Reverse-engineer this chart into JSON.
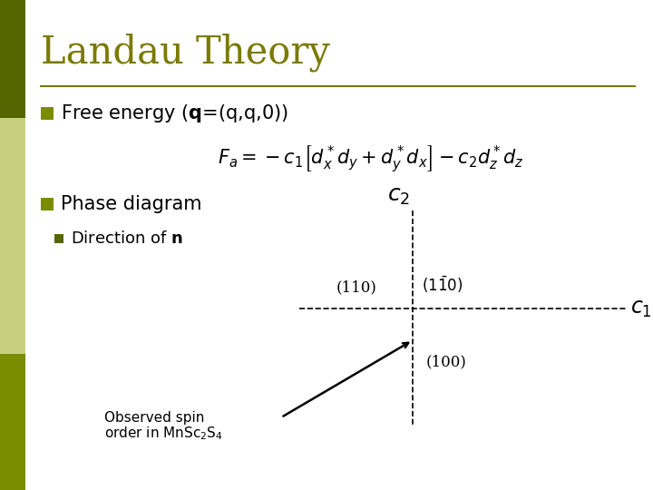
{
  "title": "Landau Theory",
  "title_color": "#7a7a00",
  "background_color": "#ffffff",
  "left_bar_top_color": "#556600",
  "left_bar_mid_color": "#c8d080",
  "left_bar_bot_color": "#7a8c00",
  "bullet_color": "#7a8c00",
  "sub_bullet_color": "#556600",
  "free_energy_text": "Free energy ($\\mathbf{q}$=(q,q,0))",
  "formula": "$F_a = -c_1\\left[d_x^*d_y + d_y^*d_x\\right] - c_2 d_z^*d_z$",
  "phase_diagram_text": "Phase diagram",
  "direction_text": "Direction of $\\mathbf{n}$",
  "c2_label": "$c_2$",
  "c1_label": "$c_1$",
  "label_110": "(110)",
  "label_110bar": "$(1\\bar{1}0)$",
  "label_100": "(100)",
  "observed_line1": "Observed spin",
  "observed_line2": "order in MnSc$_2$S$_4$"
}
